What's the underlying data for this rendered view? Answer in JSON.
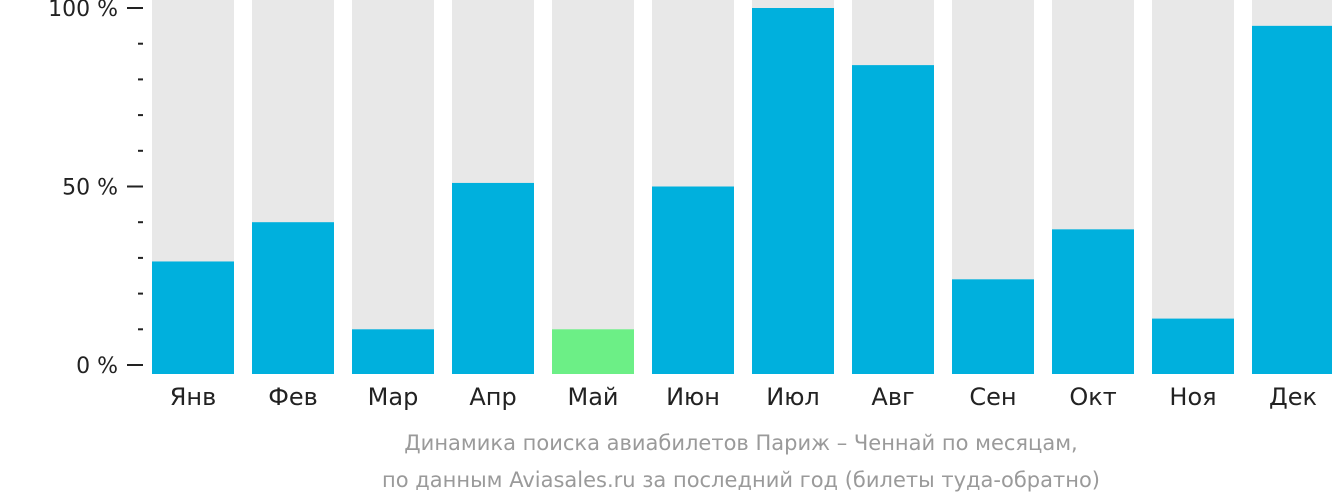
{
  "colors": {
    "bar": "#00b0dd",
    "bar_highlight": "#6cef86",
    "track": "#e8e8e8",
    "axis": "#222222",
    "caption": "#9a9a9a"
  },
  "caption": {
    "line1": "Динамика поиска авиабилетов Париж – Ченнай по месяцам,",
    "line2": "по данным Aviasales.ru за последний год (билеты туда-обратно)"
  },
  "chart_data": {
    "type": "bar",
    "categories": [
      "Янв",
      "Фев",
      "Мар",
      "Апр",
      "Май",
      "Июн",
      "Июл",
      "Авг",
      "Сен",
      "Окт",
      "Ноя",
      "Дек"
    ],
    "values": [
      29,
      40,
      10,
      51,
      10,
      50,
      100,
      84,
      24,
      38,
      13,
      95
    ],
    "highlight_index": 4,
    "ylim": [
      0,
      100
    ],
    "y_ticks": [
      {
        "value": 0,
        "label": "0 %"
      },
      {
        "value": 50,
        "label": "50 %"
      },
      {
        "value": 100,
        "label": "100 %"
      }
    ],
    "minor_tick_step": 10,
    "grid": false,
    "legend": "none"
  }
}
